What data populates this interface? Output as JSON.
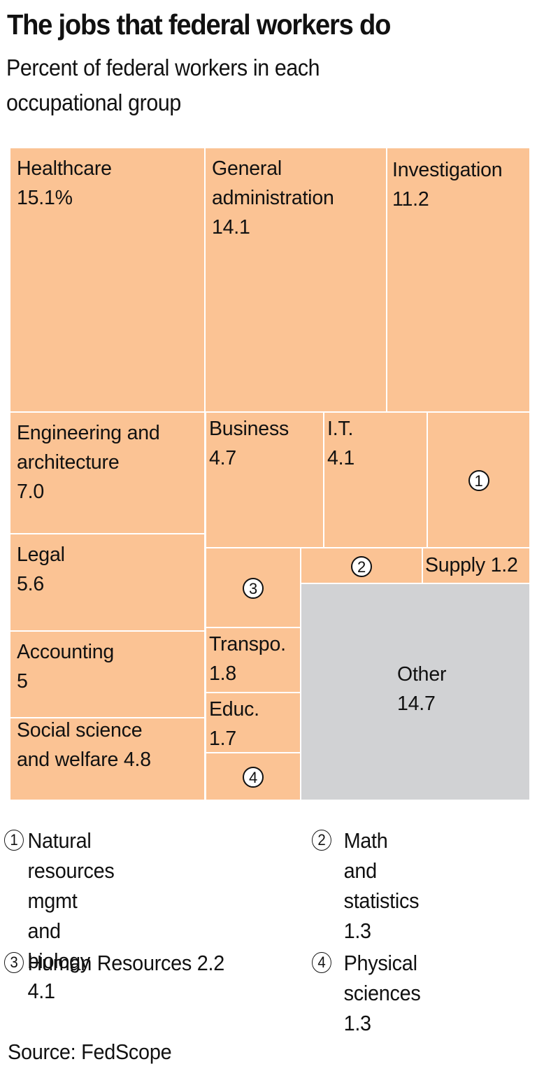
{
  "header": {
    "title": "The jobs that federal workers do",
    "subtitle": "Percent of federal workers in each occupational group"
  },
  "colors": {
    "category_fill": "#fbc394",
    "other_fill": "#d1d2d4",
    "border": "#ffffff",
    "text": "#111111"
  },
  "chart_data": {
    "type": "treemap",
    "title": "The jobs that federal workers do",
    "subtitle": "Percent of federal workers in each occupational group",
    "unit": "percent",
    "items": [
      {
        "id": "healthcare",
        "name": "Healthcare",
        "value": 15.1,
        "display": "Healthcare\n15.1%"
      },
      {
        "id": "general-administration",
        "name": "General administration",
        "value": 14.1,
        "display": "General\nadministration\n14.1"
      },
      {
        "id": "investigation",
        "name": "Investigation",
        "value": 11.2,
        "display": "Investigation\n11.2"
      },
      {
        "id": "engineering",
        "name": "Engineering and architecture",
        "value": 7.0,
        "display": "Engineering and\narchitecture\n7.0"
      },
      {
        "id": "business",
        "name": "Business",
        "value": 4.7,
        "display": "Business\n4.7"
      },
      {
        "id": "it",
        "name": "I.T.",
        "value": 4.1,
        "display": "I.T.\n4.1"
      },
      {
        "id": "natural-resources",
        "name": "Natural resources mgmt and biology",
        "value": 4.1,
        "marker": "1"
      },
      {
        "id": "legal",
        "name": "Legal",
        "value": 5.6,
        "display": "Legal\n5.6"
      },
      {
        "id": "human-resources",
        "name": "Human Resources",
        "value": 2.2,
        "marker": "3"
      },
      {
        "id": "math-statistics",
        "name": "Math and statistics",
        "value": 1.3,
        "marker": "2"
      },
      {
        "id": "supply",
        "name": "Supply",
        "value": 1.2,
        "display": "Supply 1.2"
      },
      {
        "id": "accounting",
        "name": "Accounting",
        "value": 5,
        "display": "Accounting\n5"
      },
      {
        "id": "transportation",
        "name": "Transpo.",
        "value": 1.8,
        "display": "Transpo.\n1.8"
      },
      {
        "id": "education",
        "name": "Educ.",
        "value": 1.7,
        "display": "Educ.\n1.7"
      },
      {
        "id": "social-science",
        "name": "Social science and welfare",
        "value": 4.8,
        "display": "Social science\nand welfare 4.8"
      },
      {
        "id": "physical-sciences",
        "name": "Physical sciences",
        "value": 1.3,
        "marker": "4"
      },
      {
        "id": "other",
        "name": "Other",
        "value": 14.7,
        "display": "Other\n14.7"
      }
    ]
  },
  "legend": [
    {
      "marker": "1",
      "text": "Natural resources\nmgmt and\nbiology 4.1"
    },
    {
      "marker": "2",
      "text": "Math and\nstatistics 1.3"
    },
    {
      "marker": "3",
      "text": "Human Resources 2.2"
    },
    {
      "marker": "4",
      "text": "Physical sciences\n1.3"
    }
  ],
  "footer": {
    "source": "Source: FedScope"
  }
}
